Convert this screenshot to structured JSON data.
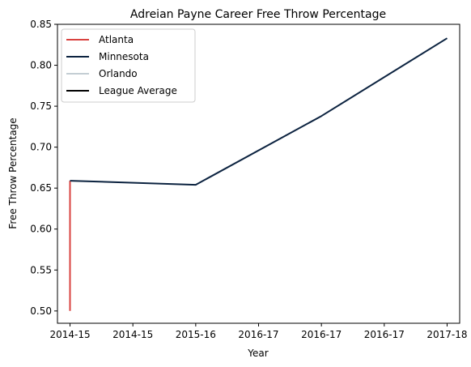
{
  "chart_data": {
    "type": "line",
    "title": "Adreian Payne Career Free Throw Percentage",
    "xlabel": "Year",
    "ylabel": "Free Throw Percentage",
    "x_ticks": [
      "2014-15",
      "2014-15",
      "2015-16",
      "2016-17",
      "2016-17",
      "2016-17",
      "2017-18"
    ],
    "xlim": [
      -0.1,
      3.1
    ],
    "ylim": [
      0.485,
      0.85
    ],
    "y_ticks": [
      "0.50",
      "0.55",
      "0.60",
      "0.65",
      "0.70",
      "0.75",
      "0.80",
      "0.85"
    ],
    "grid": false,
    "legend_position": "upper-left",
    "series": [
      {
        "name": "Atlanta",
        "color": "#d9423f",
        "x": [
          0,
          0
        ],
        "y": [
          0.5,
          0.659
        ]
      },
      {
        "name": "Minnesota",
        "color": "#0c2340",
        "x": [
          0,
          1,
          2,
          3
        ],
        "y": [
          0.659,
          0.654,
          0.738,
          0.833
        ]
      },
      {
        "name": "Orlando",
        "color": "#c4ced4",
        "x": [],
        "y": []
      },
      {
        "name": "League Average",
        "color": "#000000",
        "x": [],
        "y": []
      }
    ]
  }
}
